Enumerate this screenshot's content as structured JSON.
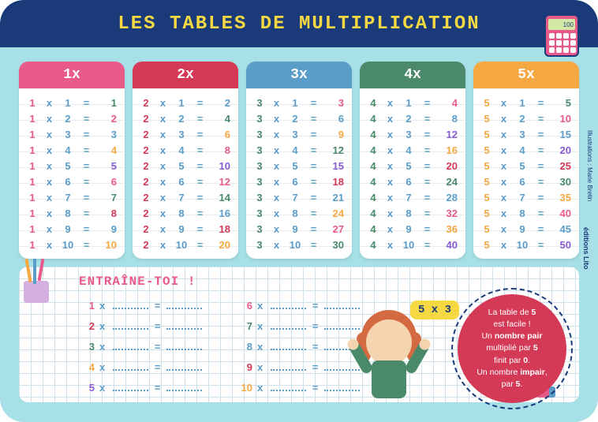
{
  "title": "LES TABLES DE MULTIPLICATION",
  "calculator_display": "100",
  "tables": [
    {
      "n": 1,
      "label": "1x",
      "header_color": "#e85a8a",
      "accent_color": "#e85a8a",
      "result_colors": [
        "#4a8a6a",
        "#e85a8a",
        "#5a9dc8",
        "#f5a842",
        "#8a5ad4",
        "#e85a8a",
        "#4a8a6a",
        "#d43a56",
        "#5a9dc8",
        "#f5a842"
      ],
      "rows": [
        [
          1,
          1,
          1
        ],
        [
          1,
          2,
          2
        ],
        [
          1,
          3,
          3
        ],
        [
          1,
          4,
          4
        ],
        [
          1,
          5,
          5
        ],
        [
          1,
          6,
          6
        ],
        [
          1,
          7,
          7
        ],
        [
          1,
          8,
          8
        ],
        [
          1,
          9,
          9
        ],
        [
          1,
          10,
          10
        ]
      ]
    },
    {
      "n": 2,
      "label": "2x",
      "header_color": "#d43a56",
      "accent_color": "#d43a56",
      "result_colors": [
        "#5a9dc8",
        "#4a8a6a",
        "#f5a842",
        "#e85a8a",
        "#8a5ad4",
        "#e85a8a",
        "#4a8a6a",
        "#5a9dc8",
        "#d43a56",
        "#f5a842"
      ],
      "rows": [
        [
          2,
          1,
          2
        ],
        [
          2,
          2,
          4
        ],
        [
          2,
          3,
          6
        ],
        [
          2,
          4,
          8
        ],
        [
          2,
          5,
          10
        ],
        [
          2,
          6,
          12
        ],
        [
          2,
          7,
          14
        ],
        [
          2,
          8,
          16
        ],
        [
          2,
          9,
          18
        ],
        [
          2,
          10,
          20
        ]
      ]
    },
    {
      "n": 3,
      "label": "3x",
      "header_color": "#5a9dc8",
      "accent_color": "#4a8a6a",
      "result_colors": [
        "#e85a8a",
        "#5a9dc8",
        "#f5a842",
        "#4a8a6a",
        "#8a5ad4",
        "#d43a56",
        "#5a9dc8",
        "#f5a842",
        "#e85a8a",
        "#4a8a6a"
      ],
      "rows": [
        [
          3,
          1,
          3
        ],
        [
          3,
          2,
          6
        ],
        [
          3,
          3,
          9
        ],
        [
          3,
          4,
          12
        ],
        [
          3,
          5,
          15
        ],
        [
          3,
          6,
          18
        ],
        [
          3,
          7,
          21
        ],
        [
          3,
          8,
          24
        ],
        [
          3,
          9,
          27
        ],
        [
          3,
          10,
          30
        ]
      ]
    },
    {
      "n": 4,
      "label": "4x",
      "header_color": "#4a8a6a",
      "accent_color": "#4a8a6a",
      "result_colors": [
        "#e85a8a",
        "#5a9dc8",
        "#8a5ad4",
        "#f5a842",
        "#d43a56",
        "#4a8a6a",
        "#5a9dc8",
        "#e85a8a",
        "#f5a842",
        "#8a5ad4"
      ],
      "rows": [
        [
          4,
          1,
          4
        ],
        [
          4,
          2,
          8
        ],
        [
          4,
          3,
          12
        ],
        [
          4,
          4,
          16
        ],
        [
          4,
          5,
          20
        ],
        [
          4,
          6,
          24
        ],
        [
          4,
          7,
          28
        ],
        [
          4,
          8,
          32
        ],
        [
          4,
          9,
          36
        ],
        [
          4,
          10,
          40
        ]
      ]
    },
    {
      "n": 5,
      "label": "5x",
      "header_color": "#f5a842",
      "accent_color": "#f5a842",
      "result_colors": [
        "#4a8a6a",
        "#e85a8a",
        "#5a9dc8",
        "#8a5ad4",
        "#d43a56",
        "#4a8a6a",
        "#f5a842",
        "#e85a8a",
        "#5a9dc8",
        "#8a5ad4"
      ],
      "rows": [
        [
          5,
          1,
          5
        ],
        [
          5,
          2,
          10
        ],
        [
          5,
          3,
          15
        ],
        [
          5,
          4,
          20
        ],
        [
          5,
          5,
          25
        ],
        [
          5,
          6,
          30
        ],
        [
          5,
          7,
          35
        ],
        [
          5,
          8,
          40
        ],
        [
          5,
          9,
          45
        ],
        [
          5,
          10,
          50
        ]
      ]
    }
  ],
  "practice": {
    "title": "ENTRAÎNE-TOI !",
    "numbers": [
      1,
      2,
      3,
      4,
      5,
      6,
      7,
      8,
      9,
      10
    ],
    "number_colors": [
      "#e85a8a",
      "#d43a56",
      "#4a8a6a",
      "#f5a842",
      "#8a5ad4",
      "#e85a8a",
      "#4a8a6a",
      "#5a9dc8",
      "#d43a56",
      "#f5a842"
    ]
  },
  "speech": "5 x 3",
  "tip": {
    "line1": "La table de",
    "bold1": "5",
    "line2": "est facile !",
    "line3": "Un",
    "bold2": "nombre pair",
    "line4": "multiplié par",
    "bold3": "5",
    "line5": "finit par",
    "bold4": "0",
    "line6": "Un nombre",
    "bold5": "impair",
    "line7": "par",
    "bold6": "5"
  },
  "publisher": "éditions Lito",
  "credit": "Illustrations : Marie Bretin",
  "colors": {
    "bg": "#a8e0e8",
    "header_bg": "#1a3a7a",
    "title": "#f5d842",
    "op": "#5a9dc8",
    "practice_title": "#e85a8a",
    "tip_bg": "#d43a56"
  }
}
